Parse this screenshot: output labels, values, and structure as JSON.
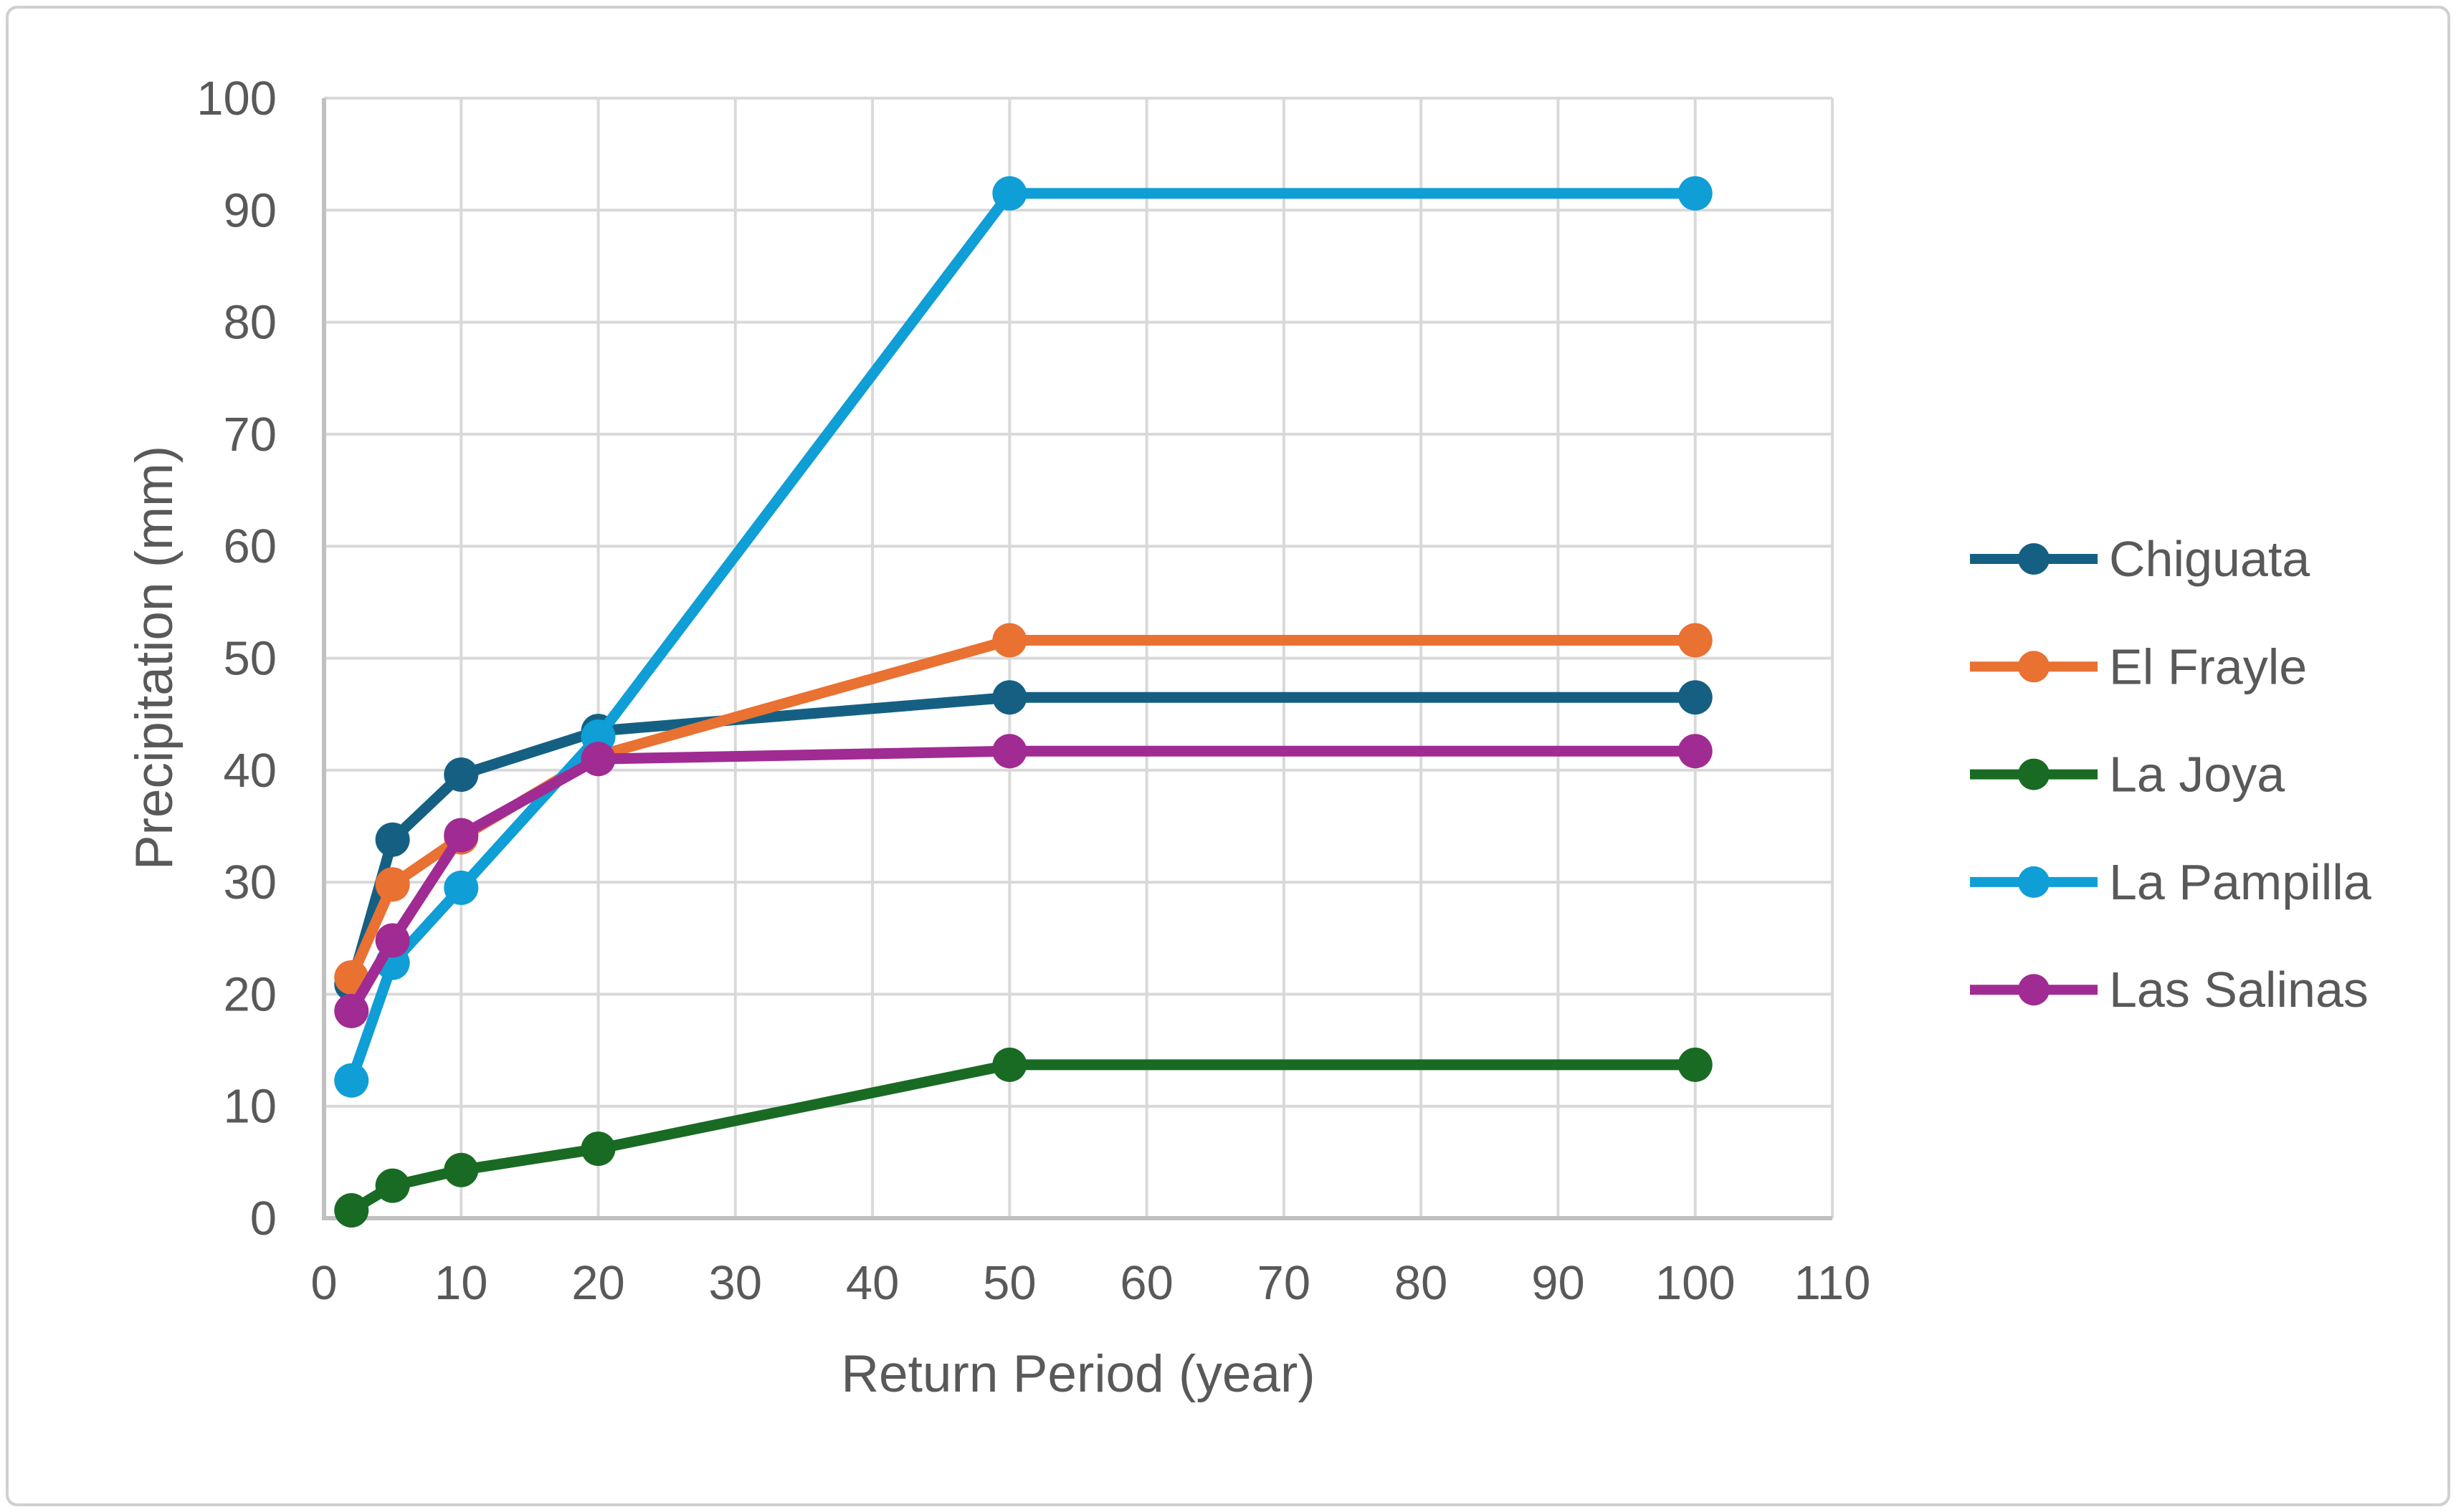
{
  "figure": {
    "background": "#FFFFFF",
    "border_color": "#CFCFCF"
  },
  "chart_data": {
    "type": "line",
    "title": "",
    "xlabel": "Return Period (year)",
    "ylabel": "Precipitation (mm)",
    "xlim": [
      0,
      110
    ],
    "ylim": [
      0,
      100
    ],
    "x_ticks": [
      0,
      10,
      20,
      30,
      40,
      50,
      60,
      70,
      80,
      90,
      100,
      110
    ],
    "y_ticks": [
      0,
      10,
      20,
      30,
      40,
      50,
      60,
      70,
      80,
      90,
      100
    ],
    "grid": true,
    "legend_position": "right",
    "marker": "circle",
    "x": [
      2,
      5,
      10,
      20,
      50,
      100
    ],
    "series": [
      {
        "name": "Chiguata",
        "color": "#156082",
        "values": [
          20.9,
          33.8,
          39.6,
          43.5,
          46.5,
          46.5
        ]
      },
      {
        "name": "El Frayle",
        "color": "#E97132",
        "values": [
          21.5,
          29.8,
          34.0,
          41.3,
          51.6,
          51.6
        ]
      },
      {
        "name": "La Joya",
        "color": "#196B24",
        "values": [
          0.7,
          2.9,
          4.3,
          6.2,
          13.7,
          13.7
        ]
      },
      {
        "name": "La Pampilla",
        "color": "#0F9ED5",
        "values": [
          12.3,
          22.8,
          29.5,
          43.0,
          91.5,
          91.5
        ]
      },
      {
        "name": "Las Salinas",
        "color": "#A02B93",
        "values": [
          18.5,
          24.8,
          34.2,
          41.0,
          41.7,
          41.7
        ]
      }
    ],
    "styles": {
      "text_color": "#595959",
      "gridline_color": "#D9D9D9",
      "axis_line_color": "#C0C0C0"
    }
  }
}
